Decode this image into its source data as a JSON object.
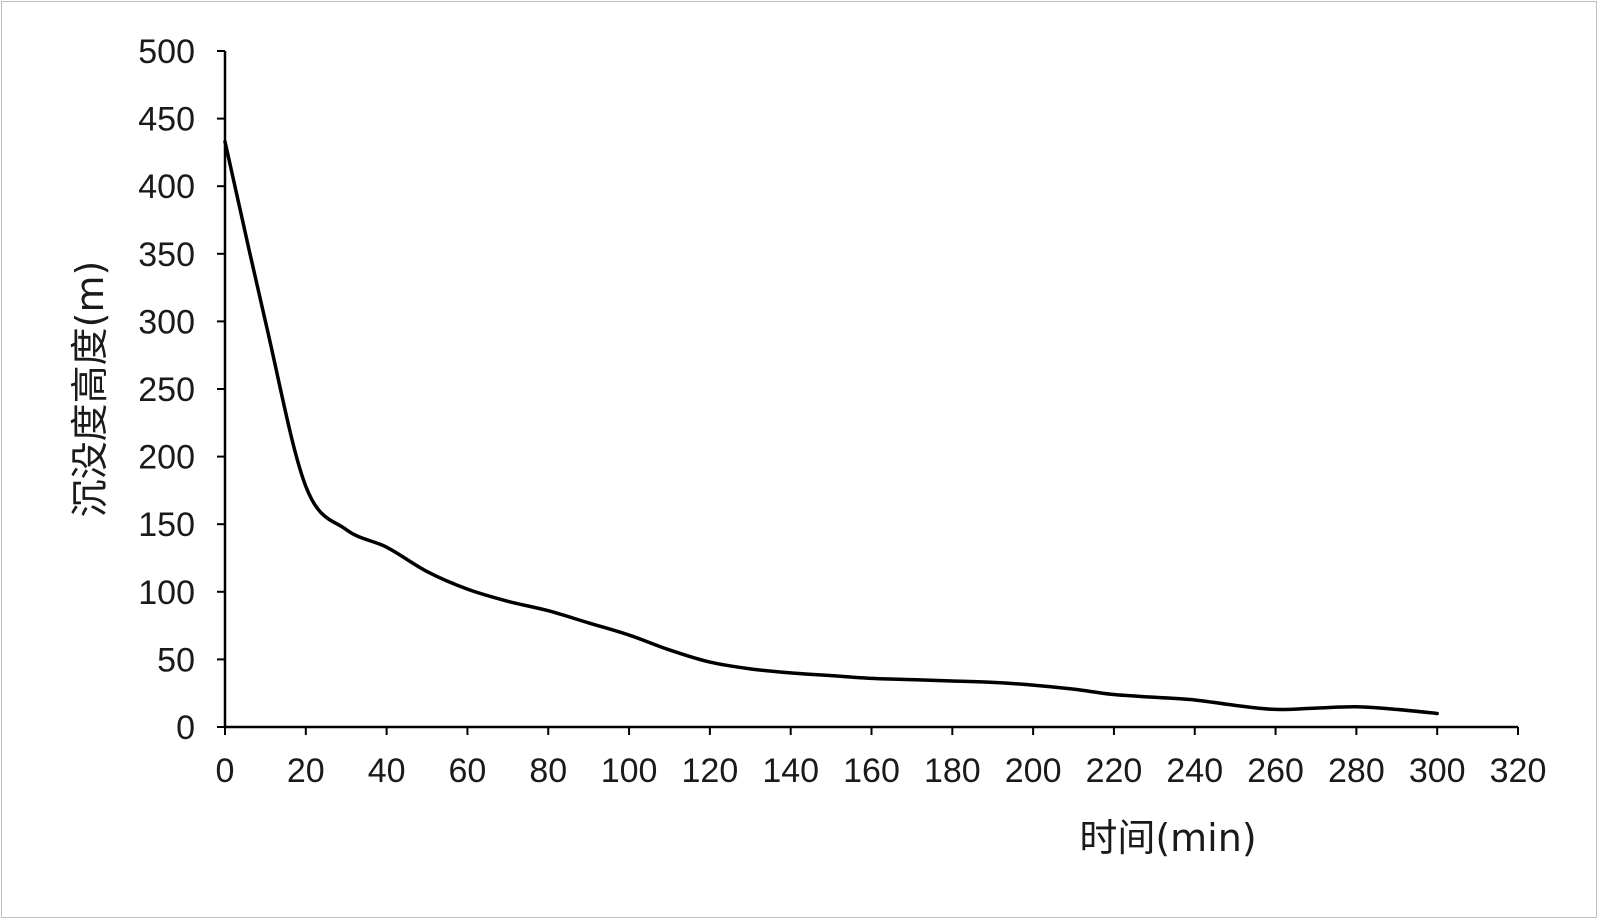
{
  "chart_data": {
    "type": "line",
    "title": "",
    "xlabel": "时间(min)",
    "ylabel": "沉没度高度(m)",
    "xlim": [
      0,
      320
    ],
    "ylim": [
      0,
      500
    ],
    "x_ticks": [
      0,
      20,
      40,
      60,
      80,
      100,
      120,
      140,
      160,
      180,
      200,
      220,
      240,
      260,
      280,
      300,
      320
    ],
    "y_ticks": [
      0,
      50,
      100,
      150,
      200,
      250,
      300,
      350,
      400,
      450,
      500
    ],
    "grid": false,
    "legend": "none",
    "line_color": "#000000",
    "series": [
      {
        "x": [
          0,
          10,
          20,
          30,
          40,
          50,
          60,
          70,
          80,
          90,
          100,
          110,
          120,
          130,
          140,
          150,
          160,
          170,
          180,
          190,
          200,
          210,
          220,
          230,
          240,
          250,
          260,
          270,
          280,
          290,
          300
        ],
        "y": [
          433,
          300,
          178,
          146,
          133,
          115,
          102,
          93,
          86,
          77,
          68,
          57,
          48,
          43,
          40,
          38,
          36,
          35,
          34,
          33,
          31,
          28,
          24,
          22,
          20,
          16,
          13,
          14,
          15,
          13,
          10
        ]
      }
    ]
  }
}
